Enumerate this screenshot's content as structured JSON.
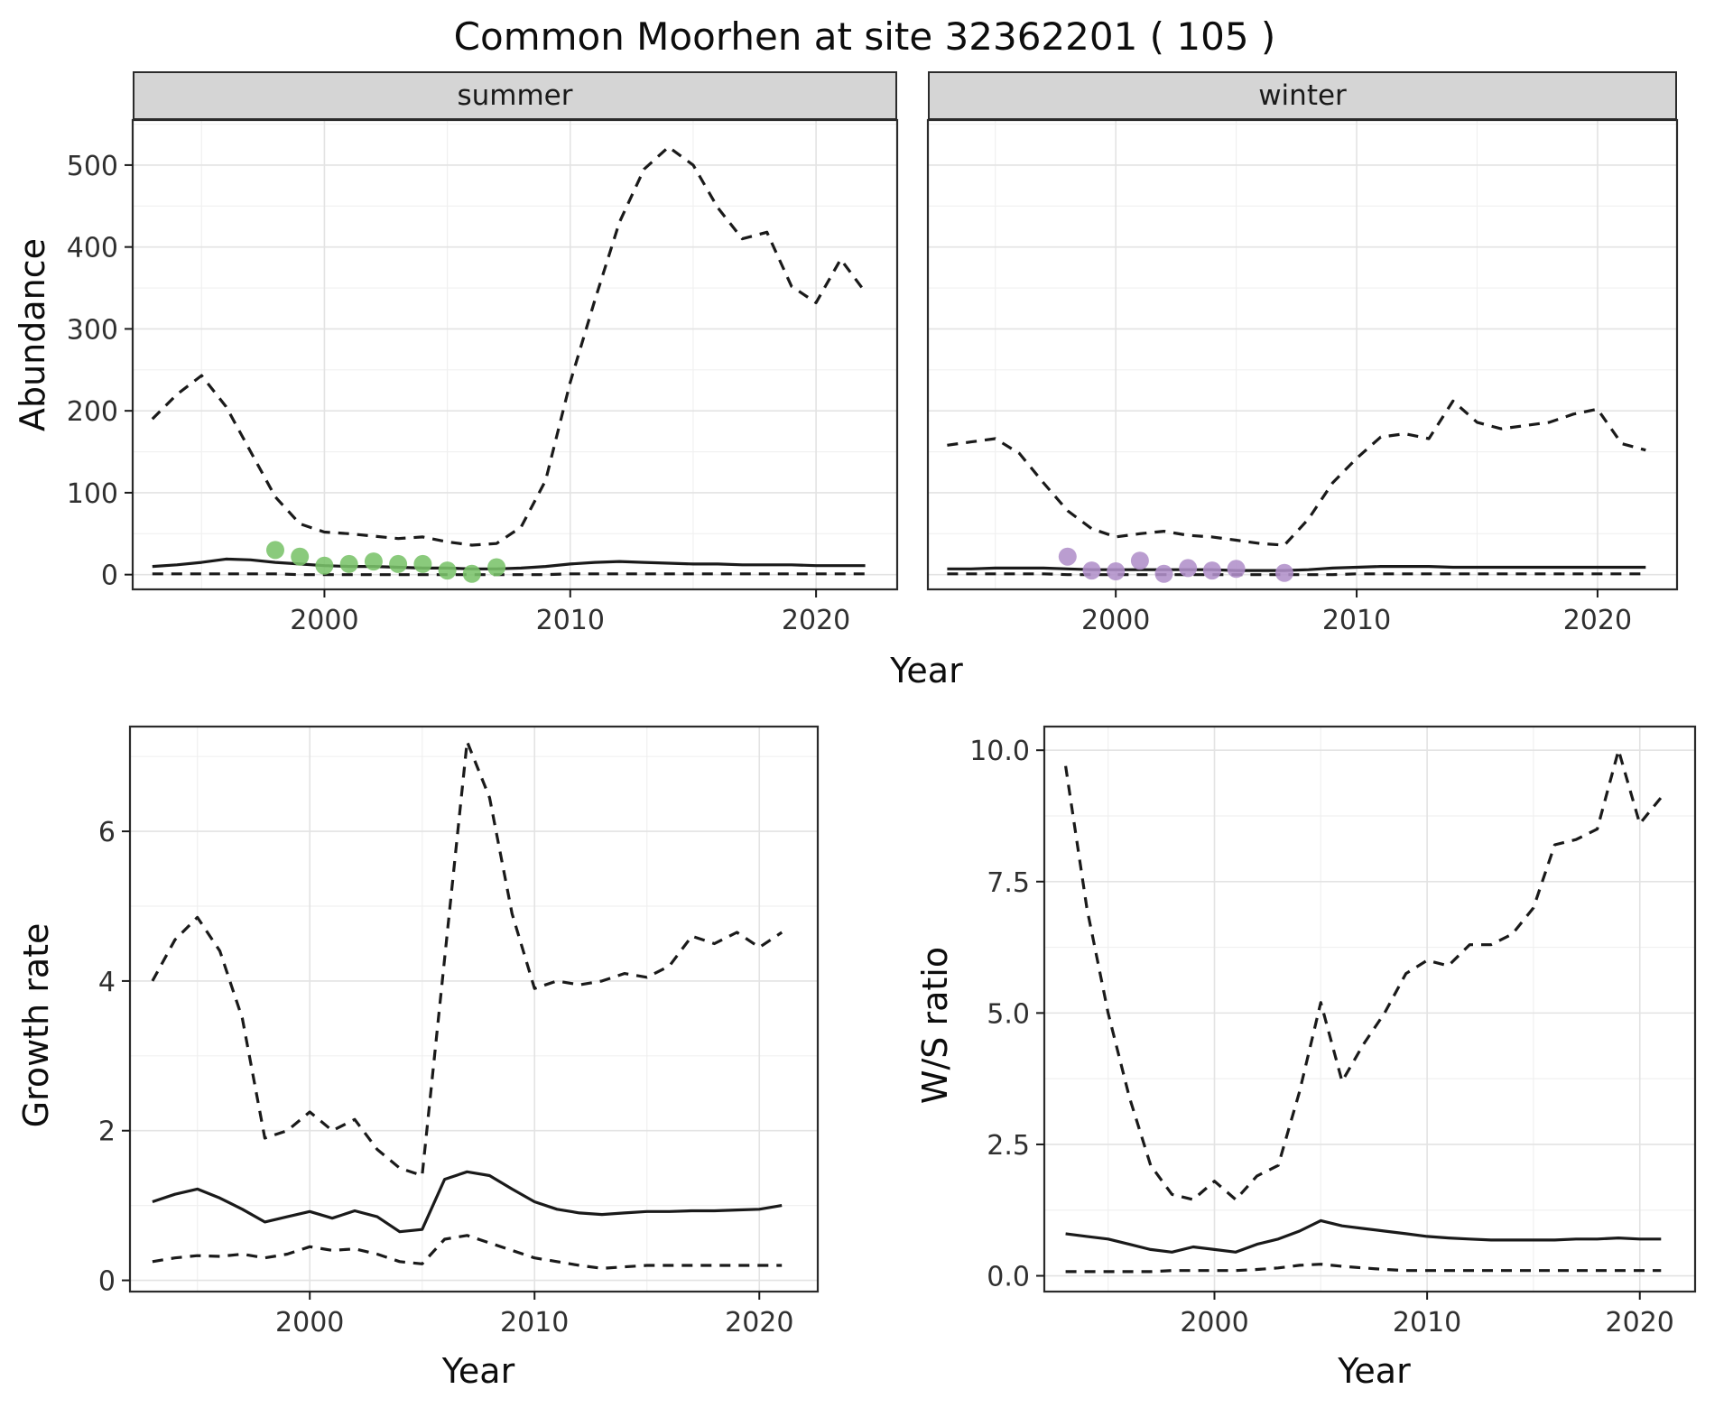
{
  "title": "Common Moorhen at site 32362201 ( 105 )",
  "labels": {
    "abundance": "Abundance",
    "year": "Year"
  },
  "theme": {
    "line_color": "#1a1a1a",
    "grid_major": "#e3e3e3",
    "grid_minor": "#f0f0f0",
    "strip_fill": "#d5d5d5",
    "summer_point_color": "#7ac36a",
    "winter_point_color": "#b18fc9"
  },
  "chart_data": [
    {
      "id": "abundance-summer",
      "type": "line",
      "facet": "summer",
      "ylabel": "Abundance",
      "xlabel": "Year",
      "x": [
        1993,
        1994,
        1995,
        1996,
        1997,
        1998,
        1999,
        2000,
        2001,
        2002,
        2003,
        2004,
        2005,
        2006,
        2007,
        2008,
        2009,
        2010,
        2011,
        2012,
        2013,
        2014,
        2015,
        2016,
        2017,
        2018,
        2019,
        2020,
        2021,
        2022
      ],
      "xlim": [
        1992.2,
        2023.3
      ],
      "ylim": [
        -18,
        555
      ],
      "xticks": [
        2000,
        2010,
        2020
      ],
      "xtick_labels": [
        "2000",
        "2010",
        "2020"
      ],
      "xticks_minor": [
        1995,
        2005,
        2015
      ],
      "yticks": [
        0,
        100,
        200,
        300,
        400,
        500
      ],
      "ytick_labels": [
        "0",
        "100",
        "200",
        "300",
        "400",
        "500"
      ],
      "yticks_minor": [
        50,
        150,
        250,
        350,
        450,
        550
      ],
      "series": [
        {
          "name": "upper-95ci",
          "style": "dashed",
          "values": [
            190,
            220,
            243,
            205,
            150,
            95,
            62,
            52,
            50,
            47,
            44,
            46,
            40,
            36,
            38,
            58,
            115,
            235,
            335,
            430,
            495,
            522,
            500,
            448,
            410,
            418,
            352,
            332,
            385,
            345
          ]
        },
        {
          "name": "median",
          "style": "solid",
          "values": [
            10,
            12,
            15,
            19,
            18,
            15,
            13,
            11,
            10,
            10,
            9,
            8,
            8,
            7,
            7,
            8,
            10,
            13,
            15,
            16,
            15,
            14,
            13,
            13,
            12,
            12,
            12,
            11,
            11,
            11
          ]
        },
        {
          "name": "lower-95ci",
          "style": "dashed",
          "values": [
            1,
            1,
            1,
            1,
            1,
            1,
            0,
            0,
            0,
            0,
            0,
            0,
            0,
            0,
            0,
            0,
            0,
            1,
            1,
            1,
            1,
            1,
            1,
            1,
            1,
            1,
            1,
            1,
            1,
            1
          ]
        }
      ],
      "observations": {
        "name": "observed-summer-counts",
        "color": "#7ac36a",
        "x": [
          1998,
          1999,
          2000,
          2001,
          2002,
          2003,
          2004,
          2005,
          2006,
          2007
        ],
        "y": [
          30,
          22,
          11,
          13,
          16,
          13,
          13,
          5,
          1,
          9
        ]
      }
    },
    {
      "id": "abundance-winter",
      "type": "line",
      "facet": "winter",
      "ylabel": "Abundance",
      "xlabel": "Year",
      "x": [
        1993,
        1994,
        1995,
        1996,
        1997,
        1998,
        1999,
        2000,
        2001,
        2002,
        2003,
        2004,
        2005,
        2006,
        2007,
        2008,
        2009,
        2010,
        2011,
        2012,
        2013,
        2014,
        2015,
        2016,
        2017,
        2018,
        2019,
        2020,
        2021,
        2022
      ],
      "xlim": [
        1992.2,
        2023.3
      ],
      "ylim": [
        -18,
        555
      ],
      "xticks": [
        2000,
        2010,
        2020
      ],
      "xtick_labels": [
        "2000",
        "2010",
        "2020"
      ],
      "xticks_minor": [
        1995,
        2005,
        2015
      ],
      "yticks": [
        0,
        100,
        200,
        300,
        400,
        500
      ],
      "ytick_labels": [
        "0",
        "100",
        "200",
        "300",
        "400",
        "500"
      ],
      "yticks_minor": [
        50,
        150,
        250,
        350,
        450,
        550
      ],
      "series": [
        {
          "name": "upper-95ci",
          "style": "dashed",
          "values": [
            158,
            162,
            166,
            148,
            112,
            78,
            56,
            46,
            50,
            53,
            48,
            46,
            42,
            38,
            36,
            68,
            112,
            142,
            168,
            172,
            166,
            212,
            186,
            178,
            182,
            186,
            196,
            202,
            160,
            152
          ]
        },
        {
          "name": "median",
          "style": "solid",
          "values": [
            7,
            7,
            8,
            8,
            8,
            7,
            6,
            6,
            6,
            6,
            6,
            6,
            5,
            5,
            5,
            6,
            8,
            9,
            10,
            10,
            10,
            9,
            9,
            9,
            9,
            9,
            9,
            9,
            9,
            9
          ]
        },
        {
          "name": "lower-95ci",
          "style": "dashed",
          "values": [
            1,
            1,
            1,
            1,
            1,
            0,
            0,
            0,
            0,
            0,
            0,
            0,
            0,
            0,
            0,
            0,
            0,
            1,
            1,
            1,
            1,
            1,
            1,
            1,
            1,
            1,
            1,
            1,
            1,
            1
          ]
        }
      ],
      "observations": {
        "name": "observed-winter-counts",
        "color": "#b18fc9",
        "x": [
          1998,
          1999,
          2000,
          2001,
          2002,
          2003,
          2004,
          2005,
          2007
        ],
        "y": [
          22,
          5,
          4,
          17,
          1,
          8,
          5,
          7,
          2
        ]
      }
    },
    {
      "id": "growth-rate",
      "type": "line",
      "ylabel": "Growth rate",
      "xlabel": "Year",
      "x": [
        1993,
        1994,
        1995,
        1996,
        1997,
        1998,
        1999,
        2000,
        2001,
        2002,
        2003,
        2004,
        2005,
        2006,
        2007,
        2008,
        2009,
        2010,
        2011,
        2012,
        2013,
        2014,
        2015,
        2016,
        2017,
        2018,
        2019,
        2020,
        2021
      ],
      "xlim": [
        1992.0,
        2022.6
      ],
      "ylim": [
        -0.15,
        7.4
      ],
      "xticks": [
        2000,
        2010,
        2020
      ],
      "xtick_labels": [
        "2000",
        "2010",
        "2020"
      ],
      "xticks_minor": [
        1995,
        2005,
        2015
      ],
      "yticks": [
        0,
        2,
        4,
        6
      ],
      "ytick_labels": [
        "0",
        "2",
        "4",
        "6"
      ],
      "yticks_minor": [
        1,
        3,
        5,
        7
      ],
      "series": [
        {
          "name": "upper-95ci",
          "style": "dashed",
          "values": [
            4.0,
            4.55,
            4.85,
            4.4,
            3.5,
            1.9,
            2.0,
            2.25,
            2.0,
            2.15,
            1.75,
            1.5,
            1.4,
            4.3,
            7.2,
            6.45,
            4.9,
            3.9,
            4.0,
            3.95,
            4.0,
            4.1,
            4.05,
            4.2,
            4.6,
            4.5,
            4.65,
            4.45,
            4.65
          ]
        },
        {
          "name": "median",
          "style": "solid",
          "values": [
            1.05,
            1.15,
            1.22,
            1.1,
            0.95,
            0.78,
            0.85,
            0.92,
            0.83,
            0.93,
            0.85,
            0.65,
            0.68,
            1.35,
            1.45,
            1.4,
            1.22,
            1.05,
            0.95,
            0.9,
            0.88,
            0.9,
            0.92,
            0.92,
            0.93,
            0.93,
            0.94,
            0.95,
            1.0
          ]
        },
        {
          "name": "lower-95ci",
          "style": "dashed",
          "values": [
            0.25,
            0.3,
            0.33,
            0.32,
            0.35,
            0.3,
            0.35,
            0.45,
            0.4,
            0.42,
            0.35,
            0.25,
            0.22,
            0.55,
            0.6,
            0.5,
            0.4,
            0.3,
            0.25,
            0.2,
            0.16,
            0.18,
            0.2,
            0.2,
            0.2,
            0.2,
            0.2,
            0.2,
            0.2
          ]
        }
      ]
    },
    {
      "id": "ws-ratio",
      "type": "line",
      "ylabel": "W/S ratio",
      "xlabel": "Year",
      "x": [
        1993,
        1994,
        1995,
        1996,
        1997,
        1998,
        1999,
        2000,
        2001,
        2002,
        2003,
        2004,
        2005,
        2006,
        2007,
        2008,
        2009,
        2010,
        2011,
        2012,
        2013,
        2014,
        2015,
        2016,
        2017,
        2018,
        2019,
        2020,
        2021
      ],
      "xlim": [
        1992.0,
        2022.6
      ],
      "ylim": [
        -0.3,
        10.45
      ],
      "xticks": [
        2000,
        2010,
        2020
      ],
      "xtick_labels": [
        "2000",
        "2010",
        "2020"
      ],
      "xticks_minor": [
        1995,
        2005,
        2015
      ],
      "yticks": [
        0,
        2.5,
        5,
        7.5,
        10
      ],
      "ytick_labels": [
        "0.0",
        "2.5",
        "5.0",
        "7.5",
        "10.0"
      ],
      "yticks_minor": [
        1.25,
        3.75,
        6.25,
        8.75
      ],
      "series": [
        {
          "name": "upper-95ci",
          "style": "dashed",
          "values": [
            9.7,
            7.0,
            5.0,
            3.4,
            2.1,
            1.55,
            1.45,
            1.8,
            1.45,
            1.9,
            2.1,
            3.5,
            5.2,
            3.7,
            4.4,
            5.0,
            5.75,
            6.0,
            5.9,
            6.3,
            6.3,
            6.5,
            7.0,
            8.2,
            8.3,
            8.5,
            10.0,
            8.6,
            9.1
          ]
        },
        {
          "name": "median",
          "style": "solid",
          "values": [
            0.8,
            0.75,
            0.7,
            0.6,
            0.5,
            0.45,
            0.55,
            0.5,
            0.45,
            0.6,
            0.7,
            0.85,
            1.05,
            0.95,
            0.9,
            0.85,
            0.8,
            0.75,
            0.72,
            0.7,
            0.68,
            0.68,
            0.68,
            0.68,
            0.7,
            0.7,
            0.72,
            0.7,
            0.7
          ]
        },
        {
          "name": "lower-95ci",
          "style": "dashed",
          "values": [
            0.08,
            0.08,
            0.08,
            0.08,
            0.08,
            0.1,
            0.1,
            0.1,
            0.1,
            0.12,
            0.15,
            0.2,
            0.22,
            0.18,
            0.15,
            0.12,
            0.1,
            0.1,
            0.1,
            0.1,
            0.1,
            0.1,
            0.1,
            0.1,
            0.1,
            0.1,
            0.1,
            0.1,
            0.1
          ]
        }
      ]
    }
  ]
}
